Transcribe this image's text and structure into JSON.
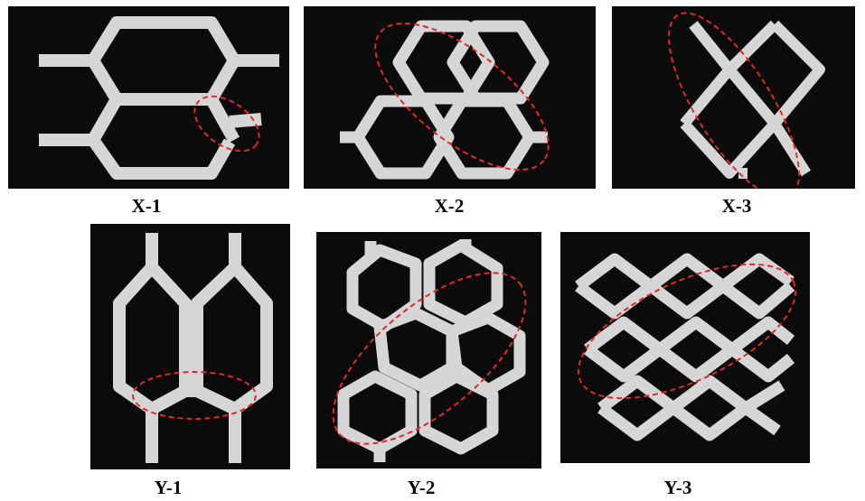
{
  "figure": {
    "panels": [
      {
        "id": "X-1",
        "label": "X-1"
      },
      {
        "id": "X-2",
        "label": "X-2"
      },
      {
        "id": "X-3",
        "label": "X-3"
      },
      {
        "id": "Y-1",
        "label": "Y-1"
      },
      {
        "id": "Y-2",
        "label": "Y-2"
      },
      {
        "id": "Y-3",
        "label": "Y-3"
      }
    ],
    "colors": {
      "specimen": "#d6d6d6",
      "background": "#0b0b0b",
      "highlight": "#e3262b"
    },
    "annotation": "red-dashed-ellipse-failure-zone"
  }
}
